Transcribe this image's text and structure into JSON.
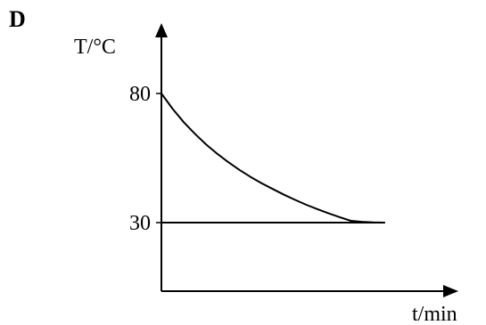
{
  "question": {
    "option_label": "D"
  },
  "chart_data": {
    "type": "line",
    "title": "",
    "xlabel": "t/min",
    "ylabel": "T/°C",
    "xlim": [
      0,
      10
    ],
    "ylim": [
      0,
      110
    ],
    "y_ticks": [
      {
        "value": 80,
        "label": "80"
      },
      {
        "value": 30,
        "label": "30"
      }
    ],
    "x_ticks": [],
    "grid": false,
    "series": [
      {
        "curve": "exponential-decay",
        "x": [
          0,
          0.5,
          1,
          1.5,
          2,
          2.5,
          3,
          3.5,
          4,
          4.5,
          5,
          5.5,
          6,
          6.5,
          7,
          7.5,
          8,
          8.5,
          9,
          9.5,
          10
        ],
        "y": [
          80,
          74.1,
          68.9,
          64.4,
          60.3,
          56.7,
          53.4,
          50.4,
          47.7,
          45.2,
          43.0,
          40.8,
          38.8,
          36.9,
          35.2,
          33.6,
          32.1,
          30.7,
          30.3,
          30.1,
          30.0
        ],
        "color": "#000000"
      },
      {
        "curve": "horizontal-line",
        "x": [
          0,
          10
        ],
        "y": [
          30,
          30
        ],
        "color": "#000000"
      }
    ]
  }
}
